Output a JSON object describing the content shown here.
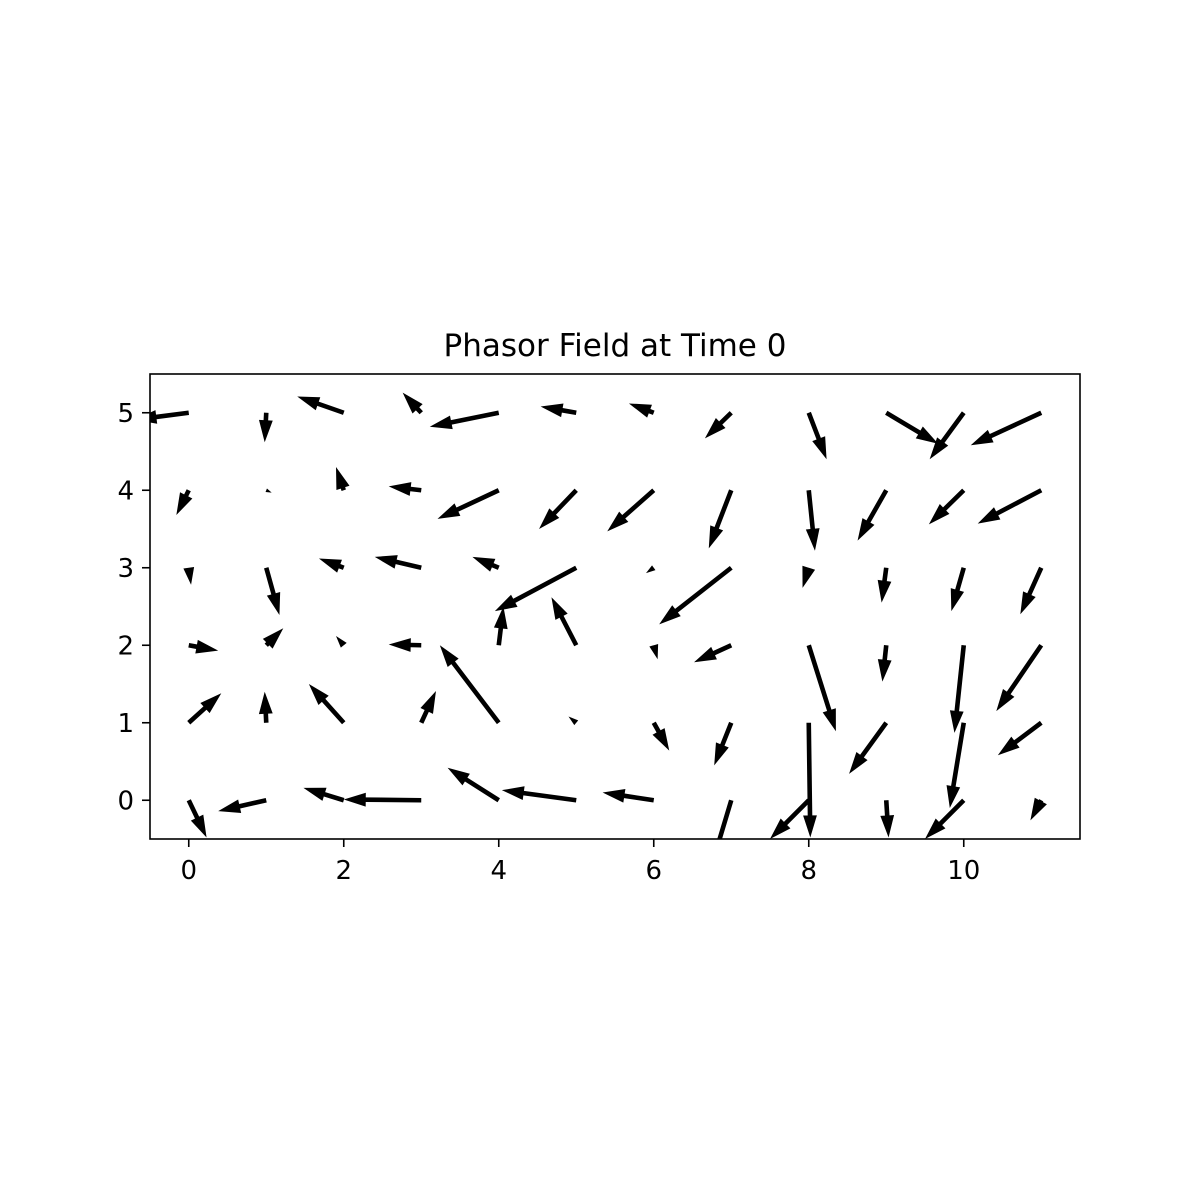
{
  "chart_data": {
    "type": "quiver",
    "title": "Phasor Field at Time 0",
    "xlabel": "",
    "ylabel": "",
    "xlim": [
      -0.5,
      11.5
    ],
    "ylim": [
      -0.5,
      5.5
    ],
    "xticks": [
      0,
      2,
      4,
      6,
      8,
      10
    ],
    "yticks": [
      0,
      1,
      2,
      3,
      4,
      5
    ],
    "grid": false,
    "legend": "none",
    "arrow_color": "#000000",
    "vectors": [
      {
        "x": 0,
        "y": 0,
        "u": 0.23,
        "v": -0.48
      },
      {
        "x": 1,
        "y": 0,
        "u": -0.62,
        "v": -0.14
      },
      {
        "x": 2,
        "y": 0,
        "u": -0.52,
        "v": 0.16
      },
      {
        "x": 3,
        "y": 0,
        "u": -1.0,
        "v": 0.01
      },
      {
        "x": 4,
        "y": 0,
        "u": -0.66,
        "v": 0.42
      },
      {
        "x": 5,
        "y": 0,
        "u": -0.96,
        "v": 0.13
      },
      {
        "x": 6,
        "y": 0,
        "u": -0.66,
        "v": 0.1
      },
      {
        "x": 7,
        "y": 0,
        "u": -0.24,
        "v": -0.8
      },
      {
        "x": 8,
        "y": 0,
        "u": -0.5,
        "v": -0.5
      },
      {
        "x": 9,
        "y": 0,
        "u": 0.03,
        "v": -0.48
      },
      {
        "x": 10,
        "y": 0,
        "u": -0.5,
        "v": -0.5
      },
      {
        "x": 11,
        "y": 0,
        "u": -0.14,
        "v": -0.26
      },
      {
        "x": 0,
        "y": 1,
        "u": 0.42,
        "v": 0.38
      },
      {
        "x": 1,
        "y": 1,
        "u": -0.02,
        "v": 0.4
      },
      {
        "x": 2,
        "y": 1,
        "u": -0.45,
        "v": 0.5
      },
      {
        "x": 3,
        "y": 1,
        "u": 0.19,
        "v": 0.41
      },
      {
        "x": 4,
        "y": 1,
        "u": -0.76,
        "v": 1.0
      },
      {
        "x": 5,
        "y": 1,
        "u": -0.1,
        "v": 0.08
      },
      {
        "x": 6,
        "y": 1,
        "u": 0.2,
        "v": -0.36
      },
      {
        "x": 7,
        "y": 1,
        "u": -0.22,
        "v": -0.55
      },
      {
        "x": 8,
        "y": 1,
        "u": 0.02,
        "v": -1.48
      },
      {
        "x": 9,
        "y": 1,
        "u": -0.48,
        "v": -0.66
      },
      {
        "x": 10,
        "y": 1,
        "u": -0.18,
        "v": -1.1
      },
      {
        "x": 11,
        "y": 1,
        "u": -0.56,
        "v": -0.42
      },
      {
        "x": 0,
        "y": 2,
        "u": 0.38,
        "v": -0.07
      },
      {
        "x": 1,
        "y": 2,
        "u": 0.22,
        "v": 0.22
      },
      {
        "x": 2,
        "y": 2,
        "u": -0.1,
        "v": 0.12
      },
      {
        "x": 3,
        "y": 2,
        "u": -0.42,
        "v": 0.01
      },
      {
        "x": 4,
        "y": 2,
        "u": 0.06,
        "v": 0.5
      },
      {
        "x": 5,
        "y": 2,
        "u": -0.32,
        "v": 0.62
      },
      {
        "x": 6,
        "y": 2,
        "u": 0.05,
        "v": -0.18
      },
      {
        "x": 7,
        "y": 2,
        "u": -0.48,
        "v": -0.22
      },
      {
        "x": 8,
        "y": 2,
        "u": 0.35,
        "v": -1.11
      },
      {
        "x": 9,
        "y": 2,
        "u": -0.05,
        "v": -0.47
      },
      {
        "x": 10,
        "y": 2,
        "u": -0.12,
        "v": -1.13
      },
      {
        "x": 11,
        "y": 2,
        "u": -0.58,
        "v": -0.85
      },
      {
        "x": 0,
        "y": 3,
        "u": 0.03,
        "v": -0.22
      },
      {
        "x": 1,
        "y": 3,
        "u": 0.17,
        "v": -0.61
      },
      {
        "x": 2,
        "y": 3,
        "u": -0.32,
        "v": 0.12
      },
      {
        "x": 3,
        "y": 3,
        "u": -0.6,
        "v": 0.14
      },
      {
        "x": 4,
        "y": 3,
        "u": -0.34,
        "v": 0.14
      },
      {
        "x": 5,
        "y": 3,
        "u": -1.05,
        "v": -0.56
      },
      {
        "x": 6,
        "y": 3,
        "u": -0.1,
        "v": -0.07
      },
      {
        "x": 7,
        "y": 3,
        "u": -0.93,
        "v": -0.73
      },
      {
        "x": 8,
        "y": 3,
        "u": -0.08,
        "v": -0.26
      },
      {
        "x": 9,
        "y": 3,
        "u": -0.06,
        "v": -0.45
      },
      {
        "x": 10,
        "y": 3,
        "u": -0.16,
        "v": -0.56
      },
      {
        "x": 11,
        "y": 3,
        "u": -0.27,
        "v": -0.6
      },
      {
        "x": 0,
        "y": 4,
        "u": -0.16,
        "v": -0.32
      },
      {
        "x": 1,
        "y": 4,
        "u": 0.07,
        "v": -0.03
      },
      {
        "x": 2,
        "y": 4,
        "u": -0.1,
        "v": 0.3
      },
      {
        "x": 3,
        "y": 4,
        "u": -0.42,
        "v": 0.05
      },
      {
        "x": 4,
        "y": 4,
        "u": -0.79,
        "v": -0.37
      },
      {
        "x": 5,
        "y": 4,
        "u": -0.48,
        "v": -0.5
      },
      {
        "x": 6,
        "y": 4,
        "u": -0.6,
        "v": -0.53
      },
      {
        "x": 7,
        "y": 4,
        "u": -0.29,
        "v": -0.75
      },
      {
        "x": 8,
        "y": 4,
        "u": 0.08,
        "v": -0.78
      },
      {
        "x": 9,
        "y": 4,
        "u": -0.37,
        "v": -0.65
      },
      {
        "x": 10,
        "y": 4,
        "u": -0.45,
        "v": -0.44
      },
      {
        "x": 11,
        "y": 4,
        "u": -0.82,
        "v": -0.43
      },
      {
        "x": 0,
        "y": 5,
        "u": -0.7,
        "v": -0.09
      },
      {
        "x": 1,
        "y": 5,
        "u": -0.02,
        "v": -0.38
      },
      {
        "x": 2,
        "y": 5,
        "u": -0.6,
        "v": 0.21
      },
      {
        "x": 3,
        "y": 5,
        "u": -0.24,
        "v": 0.26
      },
      {
        "x": 4,
        "y": 5,
        "u": -0.89,
        "v": -0.18
      },
      {
        "x": 5,
        "y": 5,
        "u": -0.46,
        "v": 0.08
      },
      {
        "x": 6,
        "y": 5,
        "u": -0.32,
        "v": 0.12
      },
      {
        "x": 7,
        "y": 5,
        "u": -0.34,
        "v": -0.33
      },
      {
        "x": 8,
        "y": 5,
        "u": 0.23,
        "v": -0.6
      },
      {
        "x": 9,
        "y": 5,
        "u": 0.67,
        "v": -0.4
      },
      {
        "x": 10,
        "y": 5,
        "u": -0.44,
        "v": -0.6
      },
      {
        "x": 11,
        "y": 5,
        "u": -0.91,
        "v": -0.42
      }
    ]
  }
}
